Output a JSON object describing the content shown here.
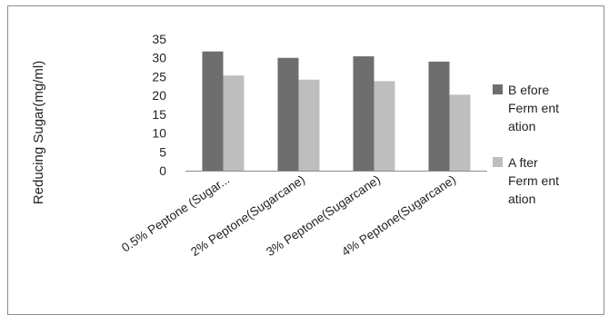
{
  "chart_data": {
    "type": "bar",
    "title": "",
    "xlabel": "",
    "ylabel": "Reducing Sugar(mg/ml)",
    "categories": [
      "0.5% Peptone (Sugar...",
      "2% Peptone(Sugarcane)",
      "3% Peptone(Sugarcane)",
      "4% Peptone(Sugarcane)"
    ],
    "series": [
      {
        "name": "Before Fermentation",
        "legend_lines": [
          "B efore",
          "Ferm ent",
          "ation"
        ],
        "color": "#6e6e6e",
        "values": [
          31.7,
          30.0,
          30.4,
          29.0
        ]
      },
      {
        "name": "After Fermentation",
        "legend_lines": [
          "A fter",
          "Ferm ent",
          "ation"
        ],
        "color": "#bebebe",
        "values": [
          25.3,
          24.2,
          23.8,
          20.2
        ]
      }
    ],
    "ylim": [
      0,
      35
    ],
    "yticks": [
      "0",
      "5",
      "10",
      "15",
      "20",
      "25",
      "30",
      "35"
    ],
    "ytick_values": [
      0,
      5,
      10,
      15,
      20,
      25,
      30,
      35
    ],
    "grid": false,
    "legend_position": "right"
  }
}
